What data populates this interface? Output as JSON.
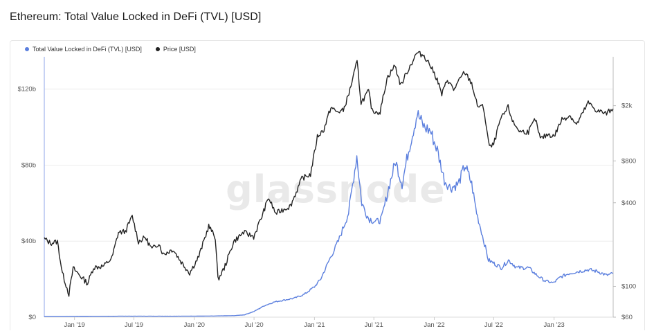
{
  "page": {
    "title": "Ethereum: Total Value Locked in DeFi (TVL) [USD]"
  },
  "watermark": "glassnode",
  "legend": [
    {
      "label": "Total Value Locked in DeFi (TVL) [USD]",
      "color": "#5b7fde"
    },
    {
      "label": "Price [USD]",
      "color": "#222222"
    }
  ],
  "chart_data": {
    "type": "line",
    "title": "Ethereum: Total Value Locked in DeFi (TVL) [USD]",
    "x_ticks": [
      "Jan '19",
      "Jul '19",
      "Jan '20",
      "Jul '20",
      "Jan '21",
      "Jul '21",
      "Jan '22",
      "Jul '22",
      "Jan '23"
    ],
    "x_range": [
      "2018-10-01",
      "2023-06-30"
    ],
    "y_left": {
      "ticks": [
        "$0",
        "$40b",
        "$80b",
        "$120b"
      ],
      "tick_values": [
        0,
        40,
        80,
        120
      ],
      "range": [
        0,
        137
      ],
      "unit": "billion USD",
      "scale": "linear"
    },
    "y_right": {
      "ticks": [
        "$60",
        "$100",
        "$400",
        "$800",
        "$2k"
      ],
      "tick_values": [
        60,
        100,
        400,
        800,
        2000
      ],
      "range": [
        60,
        4500
      ],
      "scale": "log"
    },
    "grid": "horizontal",
    "series": [
      {
        "name": "Total Value Locked in DeFi (TVL) [USD]",
        "axis": "left",
        "color": "#5b7fde",
        "points": [
          [
            "2018-10-01",
            0.3
          ],
          [
            "2018-12-01",
            0.3
          ],
          [
            "2019-03-01",
            0.4
          ],
          [
            "2019-06-01",
            0.5
          ],
          [
            "2019-09-01",
            0.5
          ],
          [
            "2019-12-01",
            0.5
          ],
          [
            "2020-03-01",
            0.6
          ],
          [
            "2020-05-01",
            0.8
          ],
          [
            "2020-06-01",
            1.2
          ],
          [
            "2020-07-01",
            3
          ],
          [
            "2020-08-01",
            6
          ],
          [
            "2020-09-01",
            8
          ],
          [
            "2020-10-01",
            9
          ],
          [
            "2020-11-01",
            10
          ],
          [
            "2020-12-01",
            12
          ],
          [
            "2021-01-01",
            16
          ],
          [
            "2021-01-20",
            20
          ],
          [
            "2021-02-15",
            30
          ],
          [
            "2021-03-15",
            40
          ],
          [
            "2021-04-15",
            55
          ],
          [
            "2021-05-10",
            85
          ],
          [
            "2021-05-25",
            60
          ],
          [
            "2021-06-15",
            52
          ],
          [
            "2021-07-10",
            50
          ],
          [
            "2021-07-25",
            52
          ],
          [
            "2021-08-15",
            68
          ],
          [
            "2021-09-05",
            82
          ],
          [
            "2021-09-25",
            70
          ],
          [
            "2021-10-15",
            88
          ],
          [
            "2021-11-10",
            107
          ],
          [
            "2021-12-01",
            100
          ],
          [
            "2021-12-20",
            98
          ],
          [
            "2022-01-10",
            88
          ],
          [
            "2022-02-01",
            72
          ],
          [
            "2022-02-20",
            68
          ],
          [
            "2022-03-15",
            70
          ],
          [
            "2022-04-05",
            80
          ],
          [
            "2022-04-25",
            70
          ],
          [
            "2022-05-10",
            55
          ],
          [
            "2022-05-25",
            45
          ],
          [
            "2022-06-15",
            30
          ],
          [
            "2022-07-05",
            28
          ],
          [
            "2022-07-25",
            26
          ],
          [
            "2022-08-15",
            30
          ],
          [
            "2022-09-10",
            26
          ],
          [
            "2022-10-15",
            26
          ],
          [
            "2022-11-10",
            22
          ],
          [
            "2022-12-05",
            19
          ],
          [
            "2022-12-30",
            18
          ],
          [
            "2023-01-20",
            21
          ],
          [
            "2023-02-15",
            23
          ],
          [
            "2023-03-15",
            24
          ],
          [
            "2023-04-15",
            25
          ],
          [
            "2023-05-15",
            24
          ],
          [
            "2023-06-10",
            22
          ],
          [
            "2023-06-30",
            23
          ]
        ]
      },
      {
        "name": "Price [USD]",
        "axis": "right",
        "color": "#222222",
        "points": [
          [
            "2018-10-01",
            220
          ],
          [
            "2018-10-20",
            205
          ],
          [
            "2018-11-10",
            210
          ],
          [
            "2018-11-25",
            125
          ],
          [
            "2018-12-15",
            88
          ],
          [
            "2018-12-28",
            135
          ],
          [
            "2019-01-20",
            118
          ],
          [
            "2019-02-10",
            105
          ],
          [
            "2019-02-28",
            137
          ],
          [
            "2019-03-31",
            140
          ],
          [
            "2019-04-25",
            160
          ],
          [
            "2019-05-15",
            245
          ],
          [
            "2019-06-05",
            248
          ],
          [
            "2019-06-26",
            320
          ],
          [
            "2019-07-15",
            210
          ],
          [
            "2019-08-05",
            225
          ],
          [
            "2019-08-25",
            185
          ],
          [
            "2019-09-15",
            205
          ],
          [
            "2019-09-28",
            170
          ],
          [
            "2019-10-28",
            185
          ],
          [
            "2019-11-22",
            150
          ],
          [
            "2019-12-18",
            125
          ],
          [
            "2020-01-15",
            165
          ],
          [
            "2020-02-14",
            272
          ],
          [
            "2020-03-05",
            225
          ],
          [
            "2020-03-13",
            112
          ],
          [
            "2020-04-01",
            135
          ],
          [
            "2020-04-30",
            210
          ],
          [
            "2020-05-30",
            245
          ],
          [
            "2020-06-30",
            228
          ],
          [
            "2020-07-25",
            320
          ],
          [
            "2020-08-14",
            435
          ],
          [
            "2020-09-05",
            335
          ],
          [
            "2020-09-30",
            360
          ],
          [
            "2020-10-20",
            380
          ],
          [
            "2020-11-24",
            600
          ],
          [
            "2020-12-20",
            640
          ],
          [
            "2021-01-10",
            1200
          ],
          [
            "2021-01-30",
            1350
          ],
          [
            "2021-02-20",
            1950
          ],
          [
            "2021-03-10",
            1800
          ],
          [
            "2021-03-30",
            1850
          ],
          [
            "2021-04-16",
            2450
          ],
          [
            "2021-05-11",
            4150
          ],
          [
            "2021-05-23",
            2100
          ],
          [
            "2021-06-15",
            2550
          ],
          [
            "2021-06-26",
            1830
          ],
          [
            "2021-07-20",
            1800
          ],
          [
            "2021-08-10",
            3150
          ],
          [
            "2021-09-03",
            3900
          ],
          [
            "2021-09-21",
            2800
          ],
          [
            "2021-10-10",
            3500
          ],
          [
            "2021-11-09",
            4800
          ],
          [
            "2021-12-01",
            4600
          ],
          [
            "2021-12-20",
            3900
          ],
          [
            "2022-01-10",
            3100
          ],
          [
            "2022-01-24",
            2400
          ],
          [
            "2022-02-10",
            3100
          ],
          [
            "2022-03-01",
            2600
          ],
          [
            "2022-04-03",
            3500
          ],
          [
            "2022-04-25",
            2900
          ],
          [
            "2022-05-12",
            2000
          ],
          [
            "2022-05-31",
            1950
          ],
          [
            "2022-06-18",
            1000
          ],
          [
            "2022-07-01",
            1050
          ],
          [
            "2022-07-20",
            1550
          ],
          [
            "2022-08-14",
            1950
          ],
          [
            "2022-08-30",
            1500
          ],
          [
            "2022-09-20",
            1300
          ],
          [
            "2022-10-15",
            1300
          ],
          [
            "2022-11-05",
            1600
          ],
          [
            "2022-11-20",
            1150
          ],
          [
            "2022-12-15",
            1250
          ],
          [
            "2023-01-01",
            1200
          ],
          [
            "2023-01-25",
            1600
          ],
          [
            "2023-02-20",
            1700
          ],
          [
            "2023-03-10",
            1450
          ],
          [
            "2023-04-15",
            2100
          ],
          [
            "2023-05-10",
            1850
          ],
          [
            "2023-06-10",
            1750
          ],
          [
            "2023-06-20",
            1850
          ],
          [
            "2023-06-30",
            1900
          ]
        ]
      }
    ]
  }
}
